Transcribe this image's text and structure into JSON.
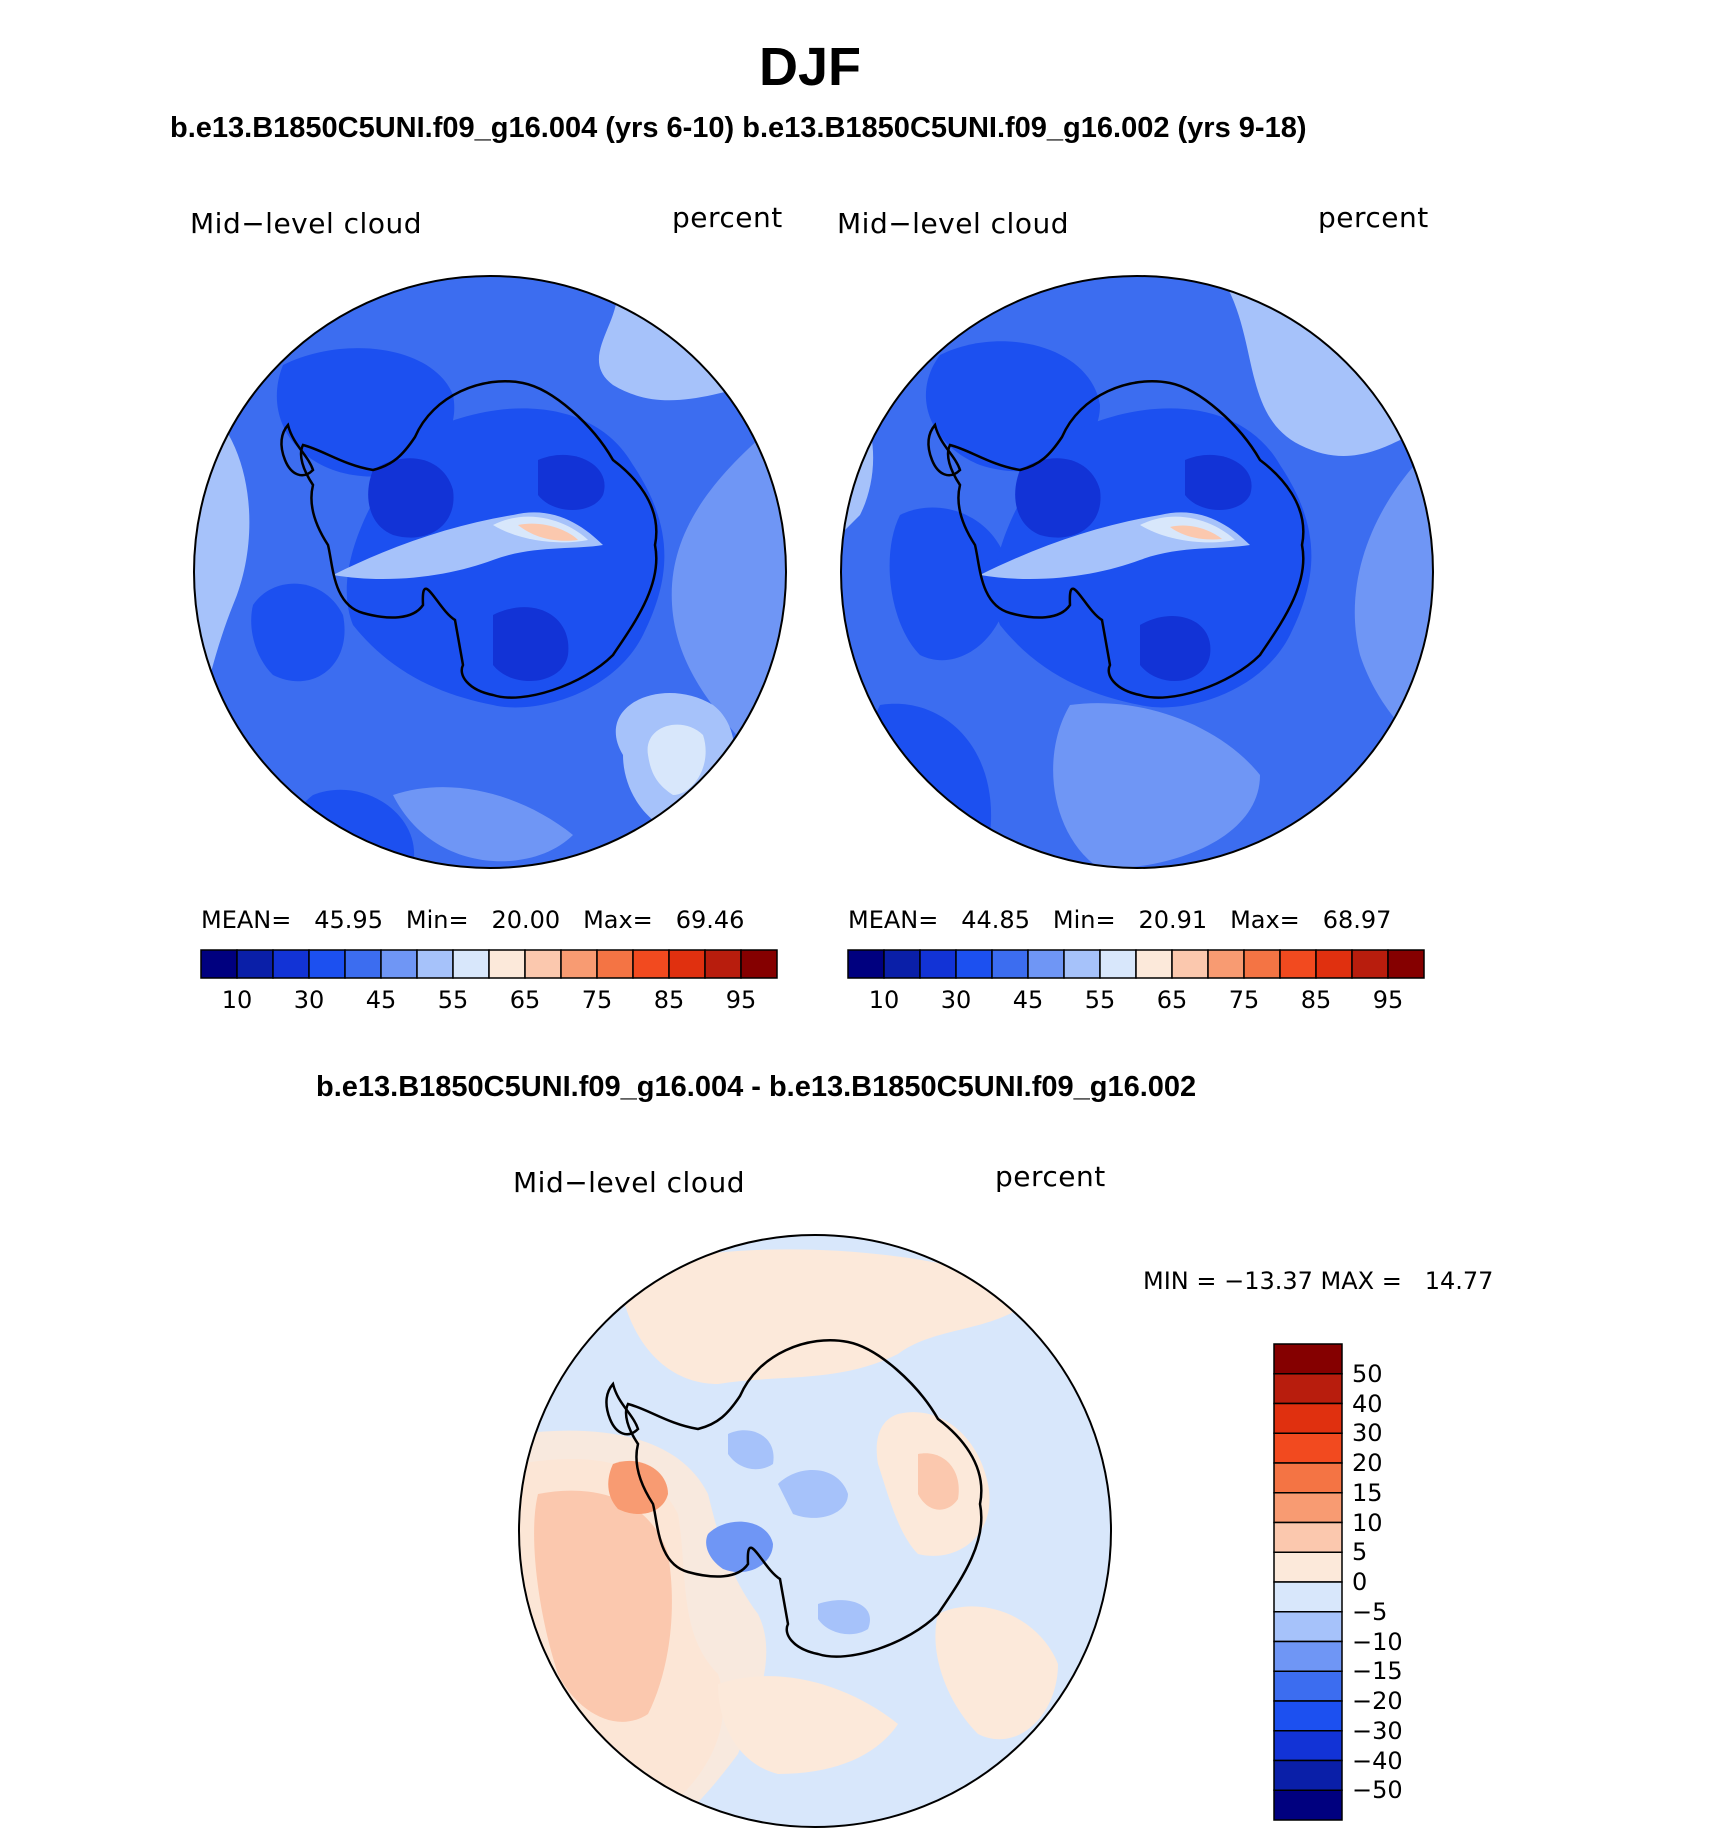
{
  "header": {
    "title": "DJF",
    "subtitle": "b.e13.B1850C5UNI.f09_g16.004 (yrs 6-10) b.e13.B1850C5UNI.f09_g16.002 (yrs 9-18)",
    "diff_title": "b.e13.B1850C5UNI.f09_g16.004 - b.e13.B1850C5UNI.f09_g16.002"
  },
  "colors": {
    "abs_palette": [
      "#00007f",
      "#0a1fa8",
      "#1233d6",
      "#1c50f0",
      "#3c6df0",
      "#6f96f5",
      "#a6c2fa",
      "#d8e7fb",
      "#fce9da",
      "#fbc8ae",
      "#f89b72",
      "#f47444",
      "#f24a1f",
      "#e0300f",
      "#b81d0d",
      "#850000"
    ],
    "diff_palette": [
      "#00007f",
      "#0a1fa8",
      "#1233d6",
      "#1c50f0",
      "#3c6df0",
      "#6f96f5",
      "#a6c2fa",
      "#d8e7fb",
      "#fce9da",
      "#fbc8ae",
      "#f89b72",
      "#f47444",
      "#f24a1f",
      "#e0300f",
      "#b81d0d",
      "#850000"
    ]
  },
  "chart_data": [
    {
      "type": "heatmap",
      "projection": "south-polar-stereographic",
      "variable": "Mid−level cloud",
      "units": "percent",
      "mean_label": "MEAN=",
      "mean": "45.95",
      "min_label": "Min=",
      "min": "20.00",
      "max_label": "Max=",
      "max": "69.46",
      "colorbar_ticks": [
        "10",
        "30",
        "45",
        "55",
        "65",
        "75",
        "85",
        "95"
      ],
      "dominant_range": [
        30,
        55
      ]
    },
    {
      "type": "heatmap",
      "projection": "south-polar-stereographic",
      "variable": "Mid−level cloud",
      "units": "percent",
      "mean_label": "MEAN=",
      "mean": "44.85",
      "min_label": "Min=",
      "min": "20.91",
      "max_label": "Max=",
      "max": "68.97",
      "colorbar_ticks": [
        "10",
        "30",
        "45",
        "55",
        "65",
        "75",
        "85",
        "95"
      ],
      "dominant_range": [
        30,
        55
      ]
    },
    {
      "type": "heatmap",
      "projection": "south-polar-stereographic",
      "variable": "Mid−level cloud",
      "units": "percent",
      "minmax_text": "MIN = −13.37 MAX =   14.77",
      "min": -13.37,
      "max": 14.77,
      "colorbar_ticks": [
        "50",
        "40",
        "30",
        "20",
        "15",
        "10",
        "5",
        "0",
        "−5",
        "−10",
        "−15",
        "−20",
        "−30",
        "−40",
        "−50"
      ]
    }
  ]
}
